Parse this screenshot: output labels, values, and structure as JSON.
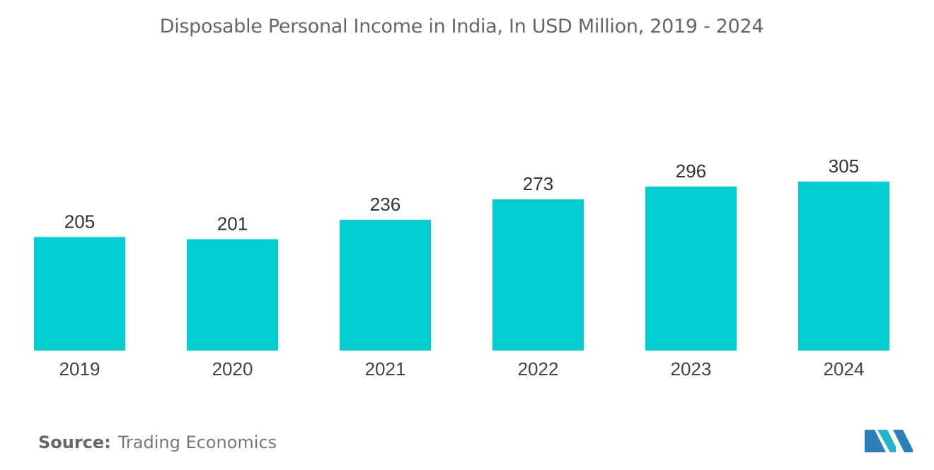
{
  "chart_data": {
    "type": "bar",
    "title": "Disposable Personal Income in India, In USD Million, 2019 - 2024",
    "categories": [
      "2019",
      "2020",
      "2021",
      "2022",
      "2023",
      "2024"
    ],
    "values": [
      205,
      201,
      236,
      273,
      296,
      305
    ],
    "data_labels": [
      "205",
      "201",
      "236",
      "273",
      "296",
      "305"
    ],
    "xlabel": "",
    "ylabel": "",
    "ylim": [
      0,
      305
    ],
    "grid": false,
    "legend": "none",
    "bar_color": "#00CED1"
  },
  "footer": {
    "source_key": "Source:",
    "source_value": "Trading Economics"
  },
  "logo": {
    "icon": "mordor-intelligence-logo-icon",
    "colors": [
      "#2A7FB8",
      "#22B4C9"
    ]
  }
}
